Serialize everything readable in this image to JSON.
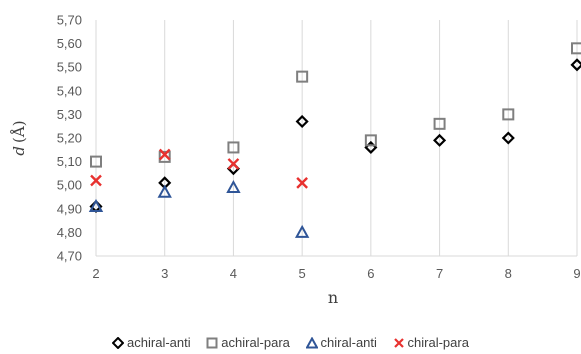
{
  "chart_data": {
    "type": "scatter",
    "title": "",
    "xlabel": "n",
    "ylabel_italic": "d",
    "ylabel_unit": "(Å)",
    "xlim": [
      2,
      9
    ],
    "ylim": [
      4.7,
      5.7
    ],
    "xticks": [
      "2",
      "3",
      "4",
      "5",
      "6",
      "7",
      "8",
      "9"
    ],
    "yticks": [
      "4,70",
      "4,80",
      "4,90",
      "5,00",
      "5,10",
      "5,20",
      "5,30",
      "5,40",
      "5,50",
      "5,60",
      "5,70"
    ],
    "grid": "vertical",
    "legend_position": "bottom",
    "series": [
      {
        "name": "achiral-anti",
        "marker": "diamond",
        "color": "#000000",
        "points": [
          [
            2,
            4.91
          ],
          [
            3,
            5.01
          ],
          [
            4,
            5.07
          ],
          [
            5,
            5.27
          ],
          [
            6,
            5.16
          ],
          [
            7,
            5.19
          ],
          [
            8,
            5.2
          ],
          [
            9,
            5.51
          ]
        ]
      },
      {
        "name": "achiral-para",
        "marker": "square",
        "color": "#7f7f7f",
        "points": [
          [
            2,
            5.1
          ],
          [
            3,
            5.12
          ],
          [
            4,
            5.16
          ],
          [
            5,
            5.46
          ],
          [
            6,
            5.19
          ],
          [
            7,
            5.26
          ],
          [
            8,
            5.3
          ],
          [
            9,
            5.58
          ]
        ]
      },
      {
        "name": "chiral-anti",
        "marker": "triangle",
        "color": "#2f5597",
        "points": [
          [
            2,
            4.91
          ],
          [
            3,
            4.97
          ],
          [
            4,
            4.99
          ],
          [
            5,
            4.8
          ]
        ]
      },
      {
        "name": "chiral-para",
        "marker": "cross",
        "color": "#e8312f",
        "points": [
          [
            2,
            5.02
          ],
          [
            3,
            5.13
          ],
          [
            4,
            5.09
          ],
          [
            5,
            5.01
          ]
        ]
      }
    ]
  }
}
